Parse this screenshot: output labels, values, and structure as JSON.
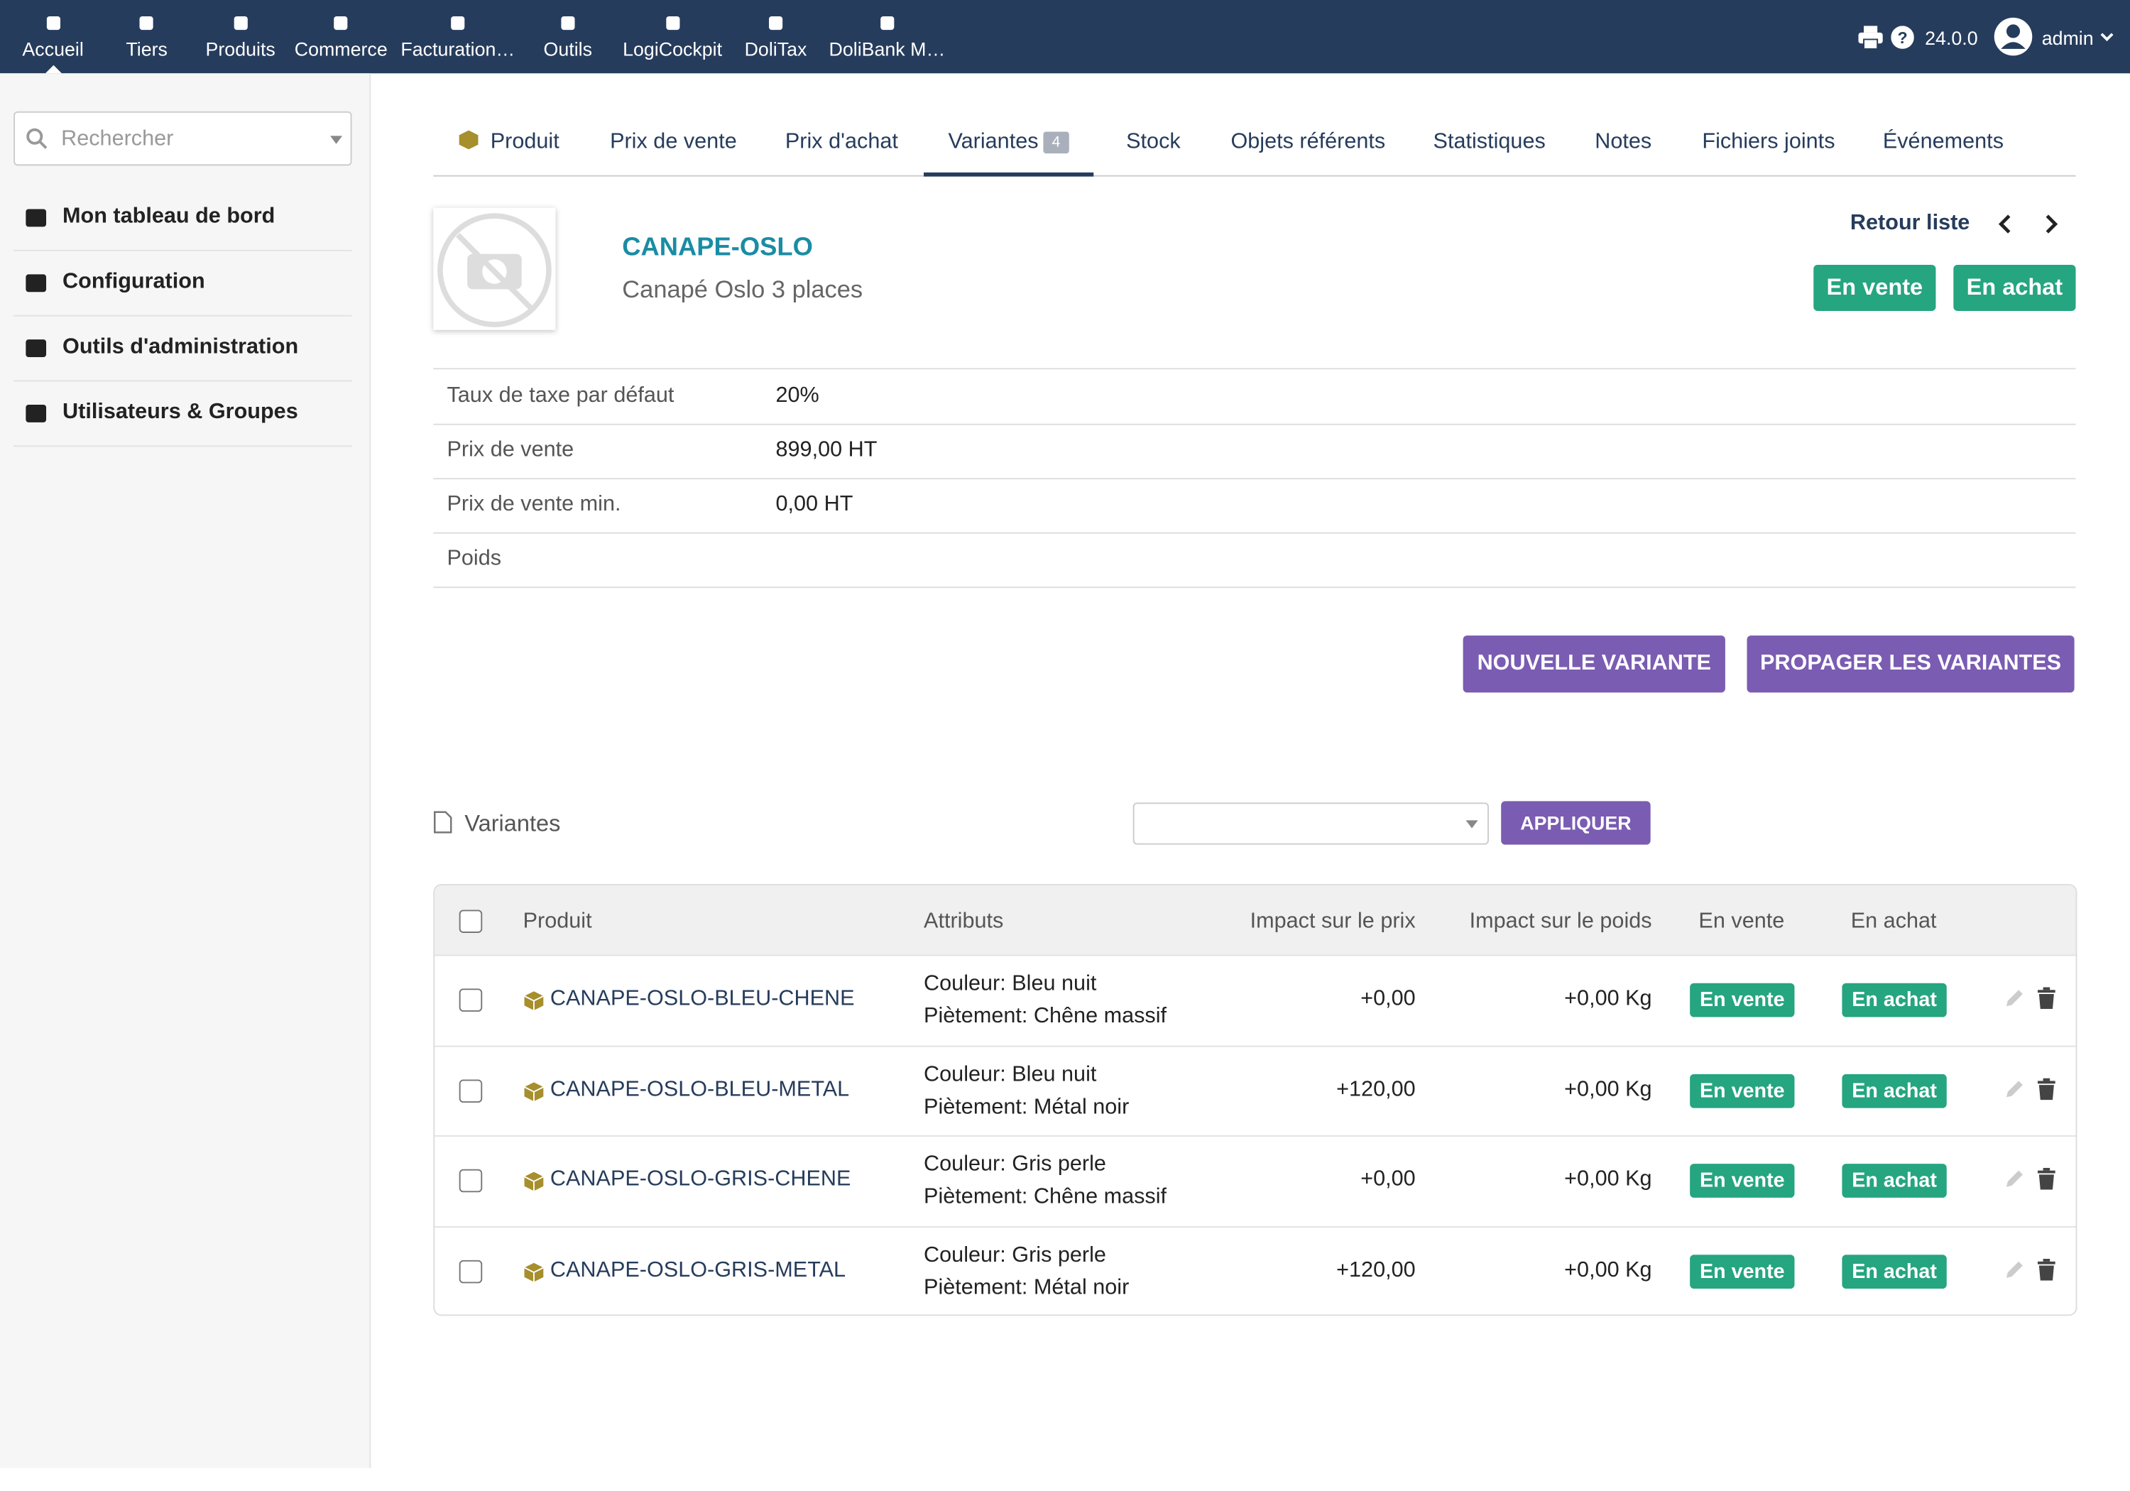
{
  "topbar": {
    "menu": [
      "Accueil",
      "Tiers",
      "Produits",
      "Commerce",
      "Facturation…",
      "Outils",
      "LogiCockpit",
      "DoliTax",
      "DoliBank M…"
    ],
    "version": "24.0.0",
    "user": "admin"
  },
  "sidebar": {
    "search_placeholder": "Rechercher",
    "items": [
      "Mon tableau de bord",
      "Configuration",
      "Outils d'administration",
      "Utilisateurs & Groupes"
    ]
  },
  "tabs": {
    "active": 3,
    "items": [
      {
        "label": "Produit"
      },
      {
        "label": "Prix de vente"
      },
      {
        "label": "Prix d'achat"
      },
      {
        "label": "Variantes",
        "badge": 4
      },
      {
        "label": "Stock"
      },
      {
        "label": "Objets référents"
      },
      {
        "label": "Statistiques"
      },
      {
        "label": "Notes"
      },
      {
        "label": "Fichiers joints"
      },
      {
        "label": "Événements"
      }
    ]
  },
  "product": {
    "ref": "CANAPE-OSLO",
    "label": "Canapé Oslo 3 places",
    "back_link": "Retour liste",
    "status_sell": "En vente",
    "status_buy": "En achat"
  },
  "fields": [
    {
      "label": "Taux de taxe par défaut",
      "value": "20%"
    },
    {
      "label": "Prix de vente",
      "value": "899,00 HT"
    },
    {
      "label": "Prix de vente min.",
      "value": "0,00 HT"
    },
    {
      "label": "Poids"
    }
  ],
  "actions": [
    "NOUVELLE VARIANTE",
    "PROPAGER LES VARIANTES"
  ],
  "variants": {
    "title": "Variantes",
    "apply": "APPLIQUER",
    "headers": [
      "Produit",
      "Attributs",
      "Impact sur le prix",
      "Impact sur le poids",
      "En vente",
      "En achat"
    ],
    "rows": [
      {
        "ref": "CANAPE-OSLO-BLEU-CHENE",
        "attributes": [
          "Couleur: Bleu nuit",
          "Piètement: Chêne massif"
        ],
        "price_impact": "+0,00",
        "weight_impact": "+0,00 Kg",
        "sell": "En vente",
        "buy": "En achat"
      },
      {
        "ref": "CANAPE-OSLO-BLEU-METAL",
        "attributes": [
          "Couleur: Bleu nuit",
          "Piètement: Métal noir"
        ],
        "price_impact": "+120,00",
        "weight_impact": "+0,00 Kg",
        "sell": "En vente",
        "buy": "En achat"
      },
      {
        "ref": "CANAPE-OSLO-GRIS-CHENE",
        "attributes": [
          "Couleur: Gris perle",
          "Piètement: Chêne massif"
        ],
        "price_impact": "+0,00",
        "weight_impact": "+0,00 Kg",
        "sell": "En vente",
        "buy": "En achat"
      },
      {
        "ref": "CANAPE-OSLO-GRIS-METAL",
        "attributes": [
          "Couleur: Gris perle",
          "Piètement: Métal noir"
        ],
        "price_impact": "+120,00",
        "weight_impact": "+0,00 Kg",
        "sell": "En vente",
        "buy": "En achat"
      }
    ]
  }
}
